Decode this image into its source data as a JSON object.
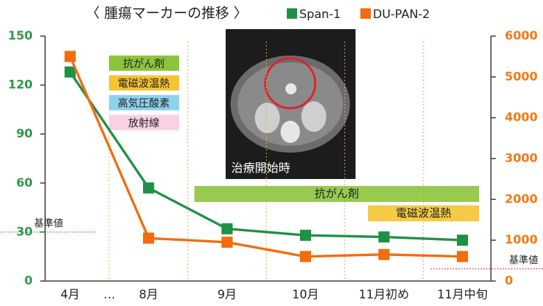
{
  "chart_data": {
    "type": "line",
    "title": "〈 腫瘍マーカーの推移 〉",
    "categories": [
      "4月",
      "…",
      "8月",
      "9月",
      "10月",
      "11月初め",
      "11月中旬"
    ],
    "series": [
      {
        "name": "Span-1",
        "color": "#1e9146",
        "values": [
          128,
          null,
          57,
          32,
          28,
          27,
          25
        ]
      },
      {
        "name": "DU-PAN-2",
        "color": "#f36c0e",
        "axis": "y2",
        "values": [
          5500,
          null,
          1050,
          950,
          600,
          650,
          600
        ]
      }
    ],
    "ylim": [
      0,
      150
    ],
    "yticks": [
      0,
      30,
      60,
      90,
      120,
      150
    ],
    "y2lim": [
      0,
      6000
    ],
    "y2ticks": [
      0,
      1000,
      2000,
      3000,
      4000,
      5000,
      6000
    ],
    "reference_lines": [
      {
        "label": "基準値",
        "value": 30,
        "axis": "y",
        "color": "#1e9146"
      },
      {
        "label": "基準値",
        "value": 300,
        "axis": "y2",
        "color": "#e0202a"
      }
    ],
    "therapy_legend": [
      {
        "label": "抗がん剤",
        "color": "#8cc43c"
      },
      {
        "label": "電磁波温熱",
        "color": "#f6c431"
      },
      {
        "label": "高気圧酸素",
        "color": "#8fd2ef"
      },
      {
        "label": "放射線",
        "color": "#f9d1e4"
      }
    ],
    "therapy_bars": [
      {
        "label": "抗がん剤",
        "color": "#8cc43c"
      },
      {
        "label": "電磁波温熱",
        "color": "#f6c431"
      }
    ],
    "image_caption": "治療開始時"
  }
}
